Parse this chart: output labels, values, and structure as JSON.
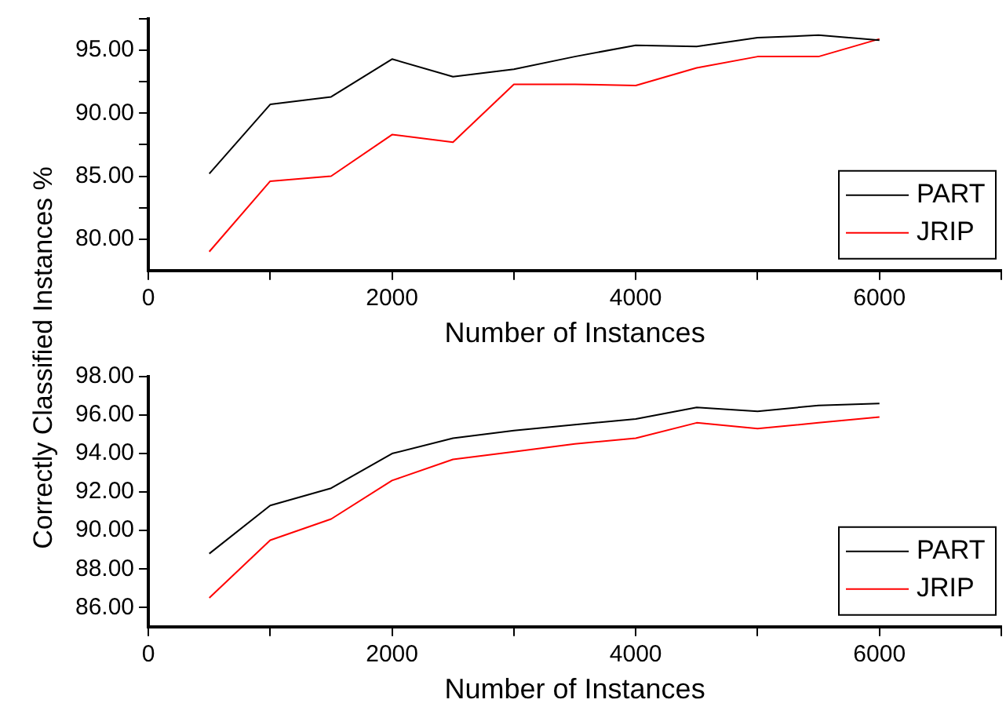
{
  "chart_data": [
    {
      "type": "line",
      "xlabel": "Number of Instances",
      "ylabel": "Correctly Classified Instances %",
      "x": [
        500,
        1000,
        1500,
        2000,
        2500,
        3000,
        3500,
        4000,
        4500,
        5000,
        5500,
        6000
      ],
      "series": [
        {
          "name": "PART",
          "color": "#000000",
          "values": [
            85.2,
            90.7,
            91.3,
            94.3,
            92.9,
            93.5,
            94.5,
            95.4,
            95.3,
            96.0,
            96.2,
            95.8
          ]
        },
        {
          "name": "JRIP",
          "color": "#ff0000",
          "values": [
            79.0,
            84.6,
            85.0,
            88.3,
            87.7,
            92.3,
            92.3,
            92.2,
            93.6,
            94.5,
            94.5,
            95.9
          ]
        }
      ],
      "xlim": [
        0,
        7000
      ],
      "xticks": [
        0,
        {
          "value": 1000,
          "label": null
        },
        2000,
        {
          "value": 3000,
          "label": null
        },
        4000,
        {
          "value": 5000,
          "label": null
        },
        6000,
        {
          "value": 7000,
          "label": null
        }
      ],
      "ylim": [
        77.5,
        97.5
      ],
      "yticks": [
        {
          "value": 80,
          "label": "80.00"
        },
        {
          "value": 82.5,
          "label": null
        },
        {
          "value": 85,
          "label": "85.00"
        },
        {
          "value": 87.5,
          "label": null
        },
        {
          "value": 90,
          "label": "90.00"
        },
        {
          "value": 92.5,
          "label": null
        },
        {
          "value": 95,
          "label": "95.00"
        },
        {
          "value": 97.5,
          "label": null
        }
      ],
      "grid": false,
      "legend": "bottom right",
      "marker": "none",
      "line_style": "solid"
    },
    {
      "type": "line",
      "xlabel": "Number of Instances",
      "x": [
        500,
        1000,
        1500,
        2000,
        2500,
        3000,
        3500,
        4000,
        4500,
        5000,
        5500,
        6000
      ],
      "series": [
        {
          "name": "PART",
          "color": "#000000",
          "values": [
            88.8,
            91.3,
            92.2,
            94.0,
            94.8,
            95.2,
            95.5,
            95.8,
            96.4,
            96.2,
            96.5,
            96.6
          ]
        },
        {
          "name": "JRIP",
          "color": "#ff0000",
          "values": [
            86.5,
            89.5,
            90.6,
            92.6,
            93.7,
            94.1,
            94.5,
            94.8,
            95.6,
            95.3,
            95.6,
            95.9
          ]
        }
      ],
      "xlim": [
        0,
        7000
      ],
      "xticks": [
        0,
        {
          "value": 1000,
          "label": null
        },
        2000,
        {
          "value": 3000,
          "label": null
        },
        4000,
        {
          "value": 5000,
          "label": null
        },
        6000,
        {
          "value": 7000,
          "label": null
        }
      ],
      "ylim": [
        85,
        98
      ],
      "yticks": [
        {
          "value": 86,
          "label": "86.00"
        },
        {
          "value": 88,
          "label": "88.00"
        },
        {
          "value": 90,
          "label": "90.00"
        },
        {
          "value": 92,
          "label": "92.00"
        },
        {
          "value": 94,
          "label": "94.00"
        },
        {
          "value": 96,
          "label": "96.00"
        },
        {
          "value": 98,
          "label": "98.00"
        }
      ],
      "grid": false,
      "legend": "bottom right",
      "marker": "none",
      "line_style": "solid"
    }
  ]
}
